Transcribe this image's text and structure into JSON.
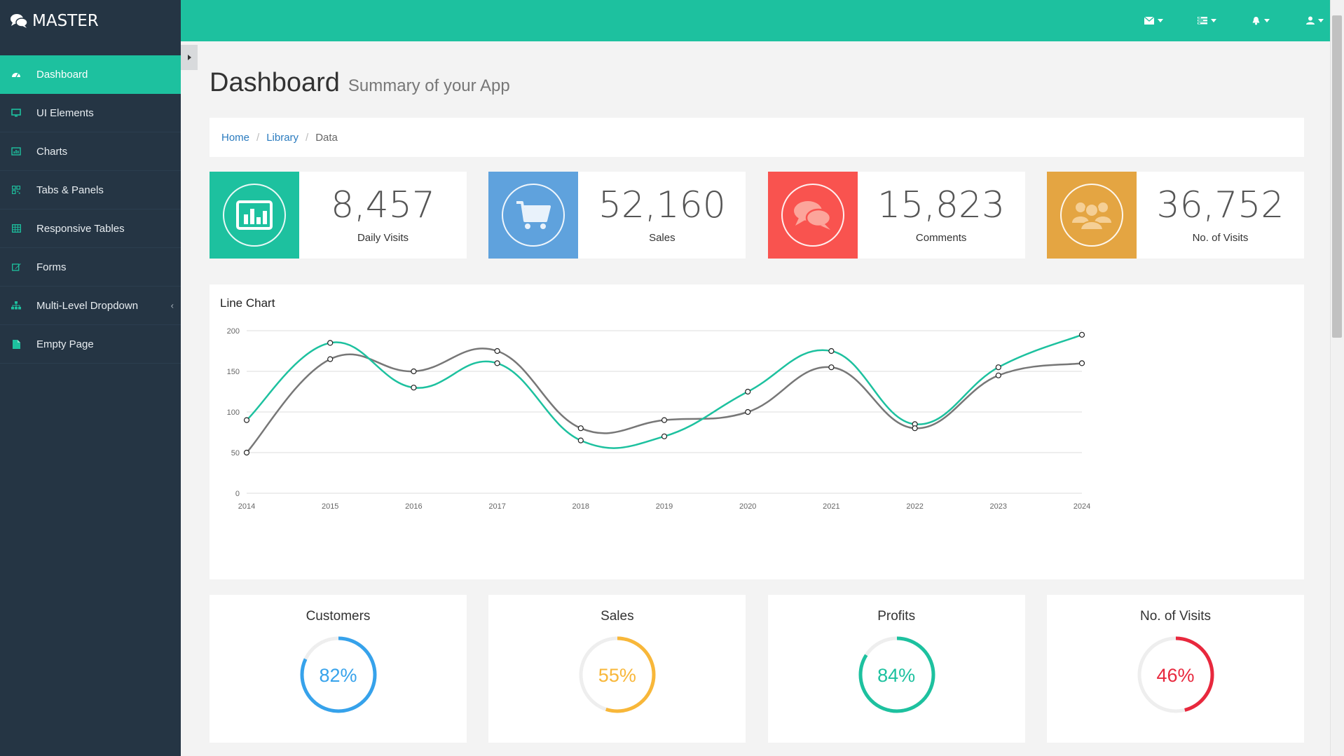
{
  "app": {
    "brand": "MASTER"
  },
  "sidebar": {
    "items": [
      {
        "label": "Dashboard",
        "icon": "dashboard-icon"
      },
      {
        "label": "UI Elements",
        "icon": "desktop-icon"
      },
      {
        "label": "Charts",
        "icon": "bar-chart-icon"
      },
      {
        "label": "Tabs & Panels",
        "icon": "qrcode-icon"
      },
      {
        "label": "Responsive Tables",
        "icon": "table-icon"
      },
      {
        "label": "Forms",
        "icon": "edit-icon"
      },
      {
        "label": "Multi-Level Dropdown",
        "icon": "sitemap-icon"
      },
      {
        "label": "Empty Page",
        "icon": "file-icon"
      }
    ]
  },
  "topbar": {
    "icons": [
      "envelope-icon",
      "tasks-icon",
      "bell-icon",
      "user-icon"
    ]
  },
  "header": {
    "title": "Dashboard",
    "subtitle": "Summary of your App"
  },
  "breadcrumb": {
    "home": "Home",
    "library": "Library",
    "current": "Data"
  },
  "stats": [
    {
      "value": "8,457",
      "label": "Daily Visits",
      "color": "#1dc19f",
      "icon": "bar-chart-icon"
    },
    {
      "value": "52,160",
      "label": "Sales",
      "color": "#5fa2dd",
      "icon": "shopping-cart-icon"
    },
    {
      "value": "15,823",
      "label": "Comments",
      "color": "#f9534f",
      "icon": "comments-icon"
    },
    {
      "value": "36,752",
      "label": "No. of Visits",
      "color": "#e4a542",
      "icon": "users-icon"
    }
  ],
  "chart_data": {
    "type": "line",
    "title": "Line Chart",
    "x": [
      "2014",
      "2015",
      "2016",
      "2017",
      "2018",
      "2019",
      "2020",
      "2021",
      "2022",
      "2023",
      "2024"
    ],
    "ylim": [
      0,
      200
    ],
    "yticks": [
      "0",
      "50",
      "100",
      "150",
      "200"
    ],
    "grid": true,
    "series": [
      {
        "color": "#1dc19f",
        "values": [
          90,
          185,
          130,
          160,
          65,
          70,
          125,
          175,
          85,
          155,
          195
        ]
      },
      {
        "color": "#777777",
        "values": [
          50,
          165,
          150,
          175,
          80,
          90,
          100,
          155,
          80,
          145,
          160
        ]
      }
    ]
  },
  "donuts": [
    {
      "title": "Customers",
      "value": 82,
      "label": "82%",
      "color": "#36a2eb"
    },
    {
      "title": "Sales",
      "value": 55,
      "label": "55%",
      "color": "#f8b739"
    },
    {
      "title": "Profits",
      "value": 84,
      "label": "84%",
      "color": "#1dc19f"
    },
    {
      "title": "No. of Visits",
      "value": 46,
      "label": "46%",
      "color": "#e8283d"
    }
  ]
}
